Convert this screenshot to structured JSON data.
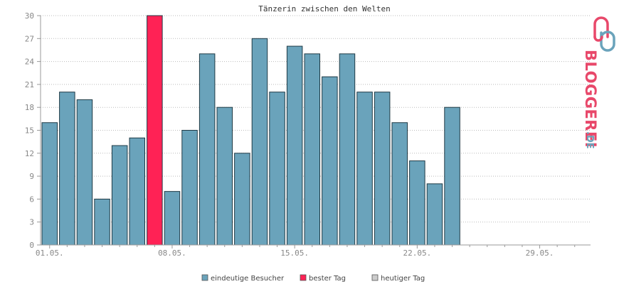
{
  "chart_data": {
    "type": "bar",
    "title": "Tänzerin zwischen den Welten",
    "xlabel": "",
    "ylabel": "",
    "ylim": [
      0,
      30
    ],
    "yticks": [
      0,
      3,
      6,
      9,
      12,
      15,
      18,
      21,
      24,
      27,
      30
    ],
    "x_tick_labels": [
      "01.05.",
      "08.05.",
      "15.05.",
      "22.05.",
      "29.05."
    ],
    "days_in_range": 31,
    "grid": true,
    "legend_position": "bottom-center",
    "series": [
      {
        "name": "eindeutige Besucher",
        "color": "#6aa3bb",
        "values": [
          16,
          20,
          19,
          6,
          13,
          14,
          30,
          7,
          15,
          25,
          18,
          12,
          27,
          20,
          26,
          25,
          22,
          25,
          20,
          20,
          16,
          11,
          8,
          18
        ]
      }
    ],
    "best_day_index": 6,
    "best_day_color": "#ff2255",
    "legend": [
      {
        "label": "eindeutige Besucher",
        "color": "#6aa3bb"
      },
      {
        "label": "bester Tag",
        "color": "#ff2255"
      },
      {
        "label": "heutiger Tag",
        "color": "#cccccc"
      }
    ]
  },
  "brand": {
    "name": "BLOGGEREI",
    "tld": ".DE",
    "colors": {
      "primary": "#e8486a",
      "secondary": "#6aa3bb"
    }
  }
}
